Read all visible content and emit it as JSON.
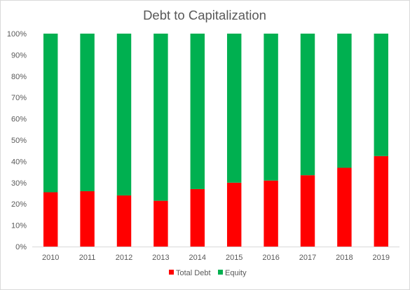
{
  "chart_data": {
    "type": "bar",
    "stacked": true,
    "title": "Debt to Capitalization",
    "categories": [
      "2010",
      "2011",
      "2012",
      "2013",
      "2014",
      "2015",
      "2016",
      "2017",
      "2018",
      "2019"
    ],
    "series": [
      {
        "name": "Total Debt",
        "color": "#ff0000",
        "values": [
          25.5,
          26,
          24,
          21.5,
          27,
          30,
          31,
          33.5,
          37,
          42.5
        ]
      },
      {
        "name": "Equity",
        "color": "#00b050",
        "values": [
          74.5,
          74,
          76,
          78.5,
          73,
          70,
          69,
          66.5,
          63,
          57.5
        ]
      }
    ],
    "y_ticks": [
      "0%",
      "10%",
      "20%",
      "30%",
      "40%",
      "50%",
      "60%",
      "70%",
      "80%",
      "90%",
      "100%"
    ],
    "ylim": [
      0,
      100
    ],
    "grid": false,
    "legend_position": "bottom"
  }
}
